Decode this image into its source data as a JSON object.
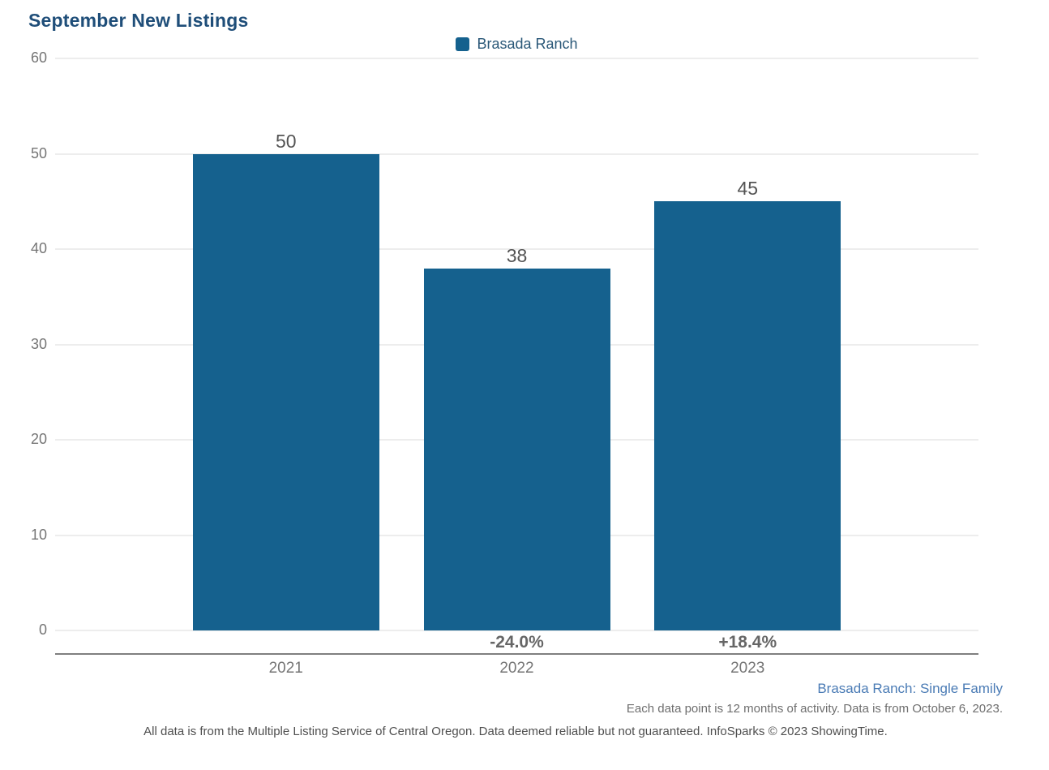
{
  "chart_data": {
    "type": "bar",
    "title": "September New Listings",
    "categories": [
      "2021",
      "2022",
      "2023"
    ],
    "series": [
      {
        "name": "Brasada Ranch",
        "values": [
          50,
          38,
          45
        ]
      }
    ],
    "value_labels": [
      "50",
      "38",
      "45"
    ],
    "pct_change_labels": [
      "",
      "-24.0%",
      "+18.4%"
    ],
    "ylim": [
      0,
      60
    ],
    "yticks": [
      0,
      10,
      20,
      30,
      40,
      50,
      60
    ],
    "grid": "horizontal-only",
    "legend_position": "top-center",
    "bar_color": "#15618E"
  },
  "footer": {
    "series_note": "Brasada Ranch: Single Family",
    "data_note": "Each data point is 12 months of activity. Data is from October 6, 2023.",
    "disclaimer": "All data is from the Multiple Listing Service of Central Oregon. Data deemed reliable but not guaranteed. InfoSparks © 2023 ShowingTime."
  },
  "colors": {
    "bar": "#15618E",
    "title_text": "#1F4E79",
    "legend_text": "#2A5878",
    "axis_label_text": "#757575",
    "value_label_text": "#545454",
    "pct_label_text": "#666666",
    "axis_line": "#7F7F7F",
    "gridline": "#EDEDED",
    "series_note_text": "#4A7BB5",
    "data_note_text": "#6E6E6E",
    "disclaimer_text": "#4F4F4F"
  }
}
